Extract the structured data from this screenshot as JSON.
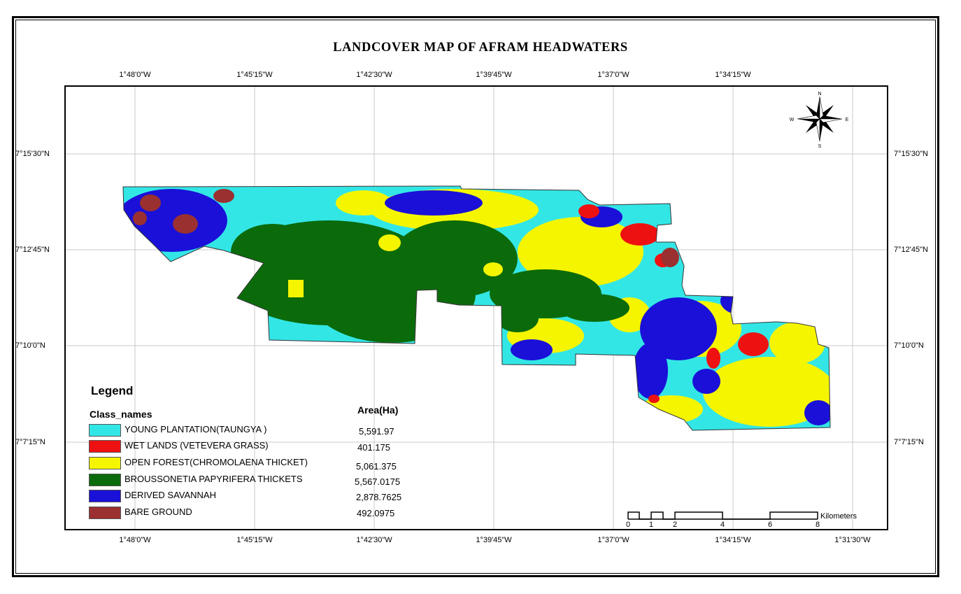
{
  "title": "LANDCOVER MAP OF AFRAM HEADWATERS",
  "longitude_labels": [
    "1°48'0\"W",
    "1°45'15\"W",
    "1°42'30\"W",
    "1°39'45\"W",
    "1°37'0\"W",
    "1°34'15\"W",
    "1°31'30\"W"
  ],
  "latitude_labels": [
    "7°15'30\"N",
    "7°12'45\"N",
    "7°10'0\"N",
    "7°7'15\"N"
  ],
  "north_arrow": {
    "n": "N",
    "s": "S",
    "e": "E",
    "w": "W"
  },
  "legend": {
    "title": "Legend",
    "class_header": "Class_names",
    "area_header": "Area(Ha)",
    "classes": [
      {
        "name": "YOUNG PLANTATION(TAUNGYA )",
        "area": "5,591.97",
        "color": "#33e6e6"
      },
      {
        "name": "WET LANDS (VETEVERA GRASS)",
        "area": "401.175",
        "color": "#ee1111"
      },
      {
        "name": "OPEN FOREST(CHROMOLAENA THICKET)",
        "area": "5,061.375",
        "color": "#f5f500"
      },
      {
        "name": "BROUSSONETIA PAPYRIFERA THICKETS",
        "area": "5,567.0175",
        "color": "#0b6b0b"
      },
      {
        "name": "DERIVED SAVANNAH",
        "area": "2,878.7625",
        "color": "#1a10d8"
      },
      {
        "name": "BARE GROUND",
        "area": "492.0975",
        "color": "#9a3030"
      }
    ]
  },
  "scale_bar": {
    "ticks": [
      "0",
      "1",
      "2",
      "4",
      "6",
      "8"
    ],
    "unit": "Kilometers"
  }
}
